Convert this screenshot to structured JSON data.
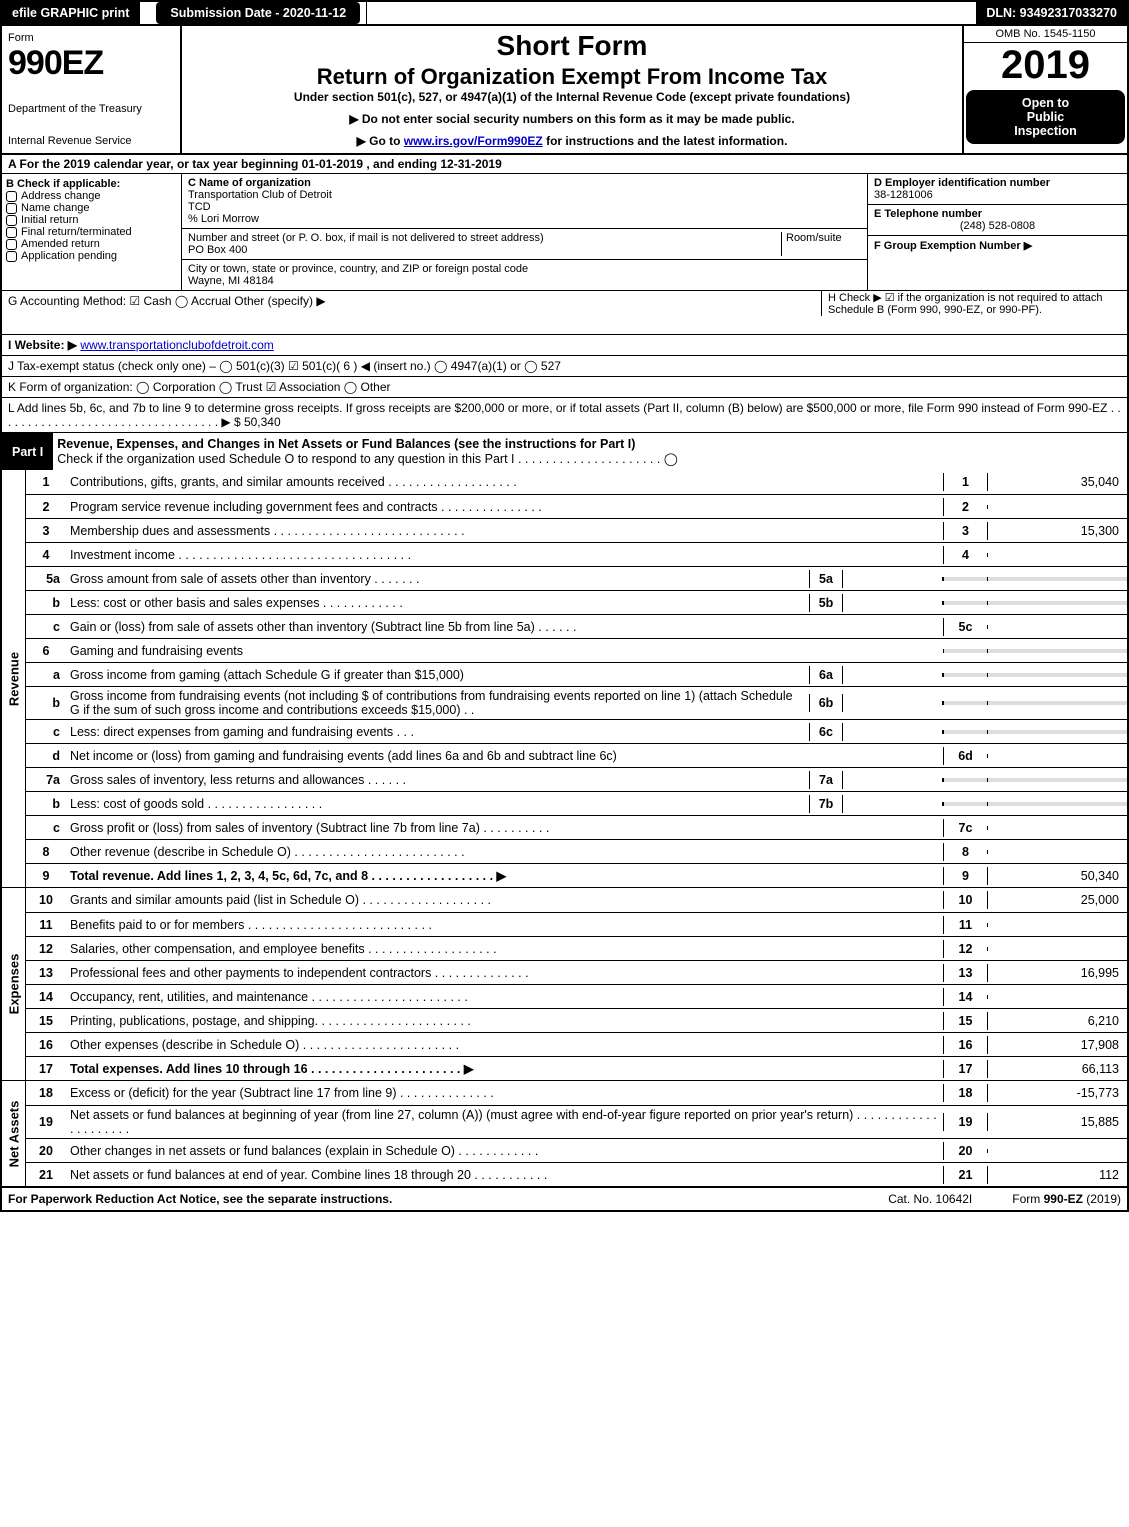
{
  "toprow": {
    "efile": "efile GRAPHIC print",
    "submit": "Submission Date - 2020-11-12",
    "dln": "DLN: 93492317033270"
  },
  "header": {
    "form_label": "Form",
    "form_no": "990EZ",
    "dept1": "Department of the Treasury",
    "dept2": "Internal Revenue Service",
    "short": "Short Form",
    "title": "Return of Organization Exempt From Income Tax",
    "under": "Under section 501(c), 527, or 4947(a)(1) of the Internal Revenue Code (except private foundations)",
    "inst1": "▶ Do not enter social security numbers on this form as it may be made public.",
    "inst2_pre": "▶ Go to ",
    "inst2_link": "www.irs.gov/Form990EZ",
    "inst2_post": " for instructions and the latest information.",
    "omb": "OMB No. 1545-1150",
    "year": "2019",
    "open1": "Open to",
    "open2": "Public",
    "open3": "Inspection"
  },
  "period": "A For the 2019 calendar year, or tax year beginning 01-01-2019 , and ending 12-31-2019",
  "sectionB": {
    "hdr": "B  Check if applicable:",
    "items": [
      "Address change",
      "Name change",
      "Initial return",
      "Final return/terminated",
      "Amended return",
      "Application pending"
    ]
  },
  "entity": {
    "c_label": "C Name of organization",
    "name1": "Transportation Club of Detroit",
    "name2": "TCD",
    "care": "% Lori Morrow",
    "street_label": "Number and street (or P. O. box, if mail is not delivered to street address)",
    "room": "Room/suite",
    "street": "PO Box 400",
    "city_label": "City or town, state or province, country, and ZIP or foreign postal code",
    "city": "Wayne, MI  48184"
  },
  "rightcol": {
    "d_label": "D Employer identification number",
    "ein": "38-1281006",
    "e_label": "E Telephone number",
    "phone": "(248) 528-0808",
    "f_label": "F Group Exemption Number  ▶"
  },
  "g": "G Accounting Method:   ☑ Cash   ◯ Accrual   Other (specify) ▶",
  "h": "H  Check ▶ ☑ if the organization is not required to attach Schedule B (Form 990, 990-EZ, or 990-PF).",
  "i_pre": "I Website: ▶",
  "i_link": "www.transportationclubofdetroit.com",
  "j": "J Tax-exempt status (check only one) – ◯ 501(c)(3)  ☑ 501(c)( 6 ) ◀ (insert no.)  ◯ 4947(a)(1) or  ◯ 527",
  "k": "K Form of organization:   ◯ Corporation   ◯ Trust   ☑ Association   ◯ Other",
  "l": "L Add lines 5b, 6c, and 7b to line 9 to determine gross receipts. If gross receipts are $200,000 or more, or if total assets (Part II, column (B) below) are $500,000 or more, file Form 990 instead of Form 990-EZ  .  .  .  .  .  .  .  .  .  .  .  .  .  .  .  .  .  .  .  .  .  .  .  .  .  .  .  .  .  .  .  .  .  .  ▶ $ 50,340",
  "part1": {
    "label": "Part I",
    "title": "Revenue, Expenses, and Changes in Net Assets or Fund Balances (see the instructions for Part I)",
    "checkline": "Check if the organization used Schedule O to respond to any question in this Part I  .  .  .  .  .  .  .  .  .  .  .  .  .  .  .  .  .  .  .  .  .  ◯"
  },
  "sections": {
    "rev": "Revenue",
    "exp": "Expenses",
    "net": "Net Assets"
  },
  "revenue": [
    {
      "n": "1",
      "d": "Contributions, gifts, grants, and similar amounts received  .  .  .  .  .  .  .  .  .  .  .  .  .  .  .  .  .  .  .",
      "num": "1",
      "amt": "35,040"
    },
    {
      "n": "2",
      "d": "Program service revenue including government fees and contracts  .  .  .  .  .  .  .  .  .  .  .  .  .  .  .",
      "num": "2",
      "amt": ""
    },
    {
      "n": "3",
      "d": "Membership dues and assessments  .  .  .  .  .  .  .  .  .  .  .  .  .  .  .  .  .  .  .  .  .  .  .  .  .  .  .  .",
      "num": "3",
      "amt": "15,300"
    },
    {
      "n": "4",
      "d": "Investment income  .  .  .  .  .  .  .  .  .  .  .  .  .  .  .  .  .  .  .  .  .  .  .  .  .  .  .  .  .  .  .  .  .  .",
      "num": "4",
      "amt": ""
    }
  ],
  "rev_5a": {
    "n": "5a",
    "d": "Gross amount from sale of assets other than inventory  .  .  .  .  .  .  .",
    "ibox": "5a"
  },
  "rev_5b": {
    "n": "b",
    "d": "Less: cost or other basis and sales expenses  .  .  .  .  .  .  .  .  .  .  .  .",
    "ibox": "5b"
  },
  "rev_5c": {
    "n": "c",
    "d": "Gain or (loss) from sale of assets other than inventory (Subtract line 5b from line 5a)  .  .  .  .  .  .",
    "num": "5c"
  },
  "rev_6": {
    "n": "6",
    "d": "Gaming and fundraising events"
  },
  "rev_6a": {
    "n": "a",
    "d": "Gross income from gaming (attach Schedule G if greater than $15,000)",
    "ibox": "6a"
  },
  "rev_6b": {
    "n": "b",
    "d": "Gross income from fundraising events (not including $                 of contributions from fundraising events reported on line 1) (attach Schedule G if the sum of such gross income and contributions exceeds $15,000)    .  .",
    "ibox": "6b"
  },
  "rev_6c": {
    "n": "c",
    "d": "Less: direct expenses from gaming and fundraising events     .  .  .",
    "ibox": "6c"
  },
  "rev_6d": {
    "n": "d",
    "d": "Net income or (loss) from gaming and fundraising events (add lines 6a and 6b and subtract line 6c)",
    "num": "6d"
  },
  "rev_7a": {
    "n": "7a",
    "d": "Gross sales of inventory, less returns and allowances  .  .  .  .  .  .",
    "ibox": "7a"
  },
  "rev_7b": {
    "n": "b",
    "d": "Less: cost of goods sold       .  .  .  .  .  .  .  .  .  .  .  .  .  .  .  .  .",
    "ibox": "7b"
  },
  "rev_7c": {
    "n": "c",
    "d": "Gross profit or (loss) from sales of inventory (Subtract line 7b from line 7a)  .  .  .  .  .  .  .  .  .  .",
    "num": "7c"
  },
  "rev_8": {
    "n": "8",
    "d": "Other revenue (describe in Schedule O)  .  .  .  .  .  .  .  .  .  .  .  .  .  .  .  .  .  .  .  .  .  .  .  .  .",
    "num": "8"
  },
  "rev_9": {
    "n": "9",
    "d": "Total revenue. Add lines 1, 2, 3, 4, 5c, 6d, 7c, and 8   .  .  .  .  .  .  .  .  .  .  .  .  .  .  .  .  .  .  ▶",
    "num": "9",
    "amt": "50,340"
  },
  "expenses": [
    {
      "n": "10",
      "d": "Grants and similar amounts paid (list in Schedule O)  .  .  .  .  .  .  .  .  .  .  .  .  .  .  .  .  .  .  .",
      "num": "10",
      "amt": "25,000"
    },
    {
      "n": "11",
      "d": "Benefits paid to or for members    .  .  .  .  .  .  .  .  .  .  .  .  .  .  .  .  .  .  .  .  .  .  .  .  .  .  .",
      "num": "11",
      "amt": ""
    },
    {
      "n": "12",
      "d": "Salaries, other compensation, and employee benefits  .  .  .  .  .  .  .  .  .  .  .  .  .  .  .  .  .  .  .",
      "num": "12",
      "amt": ""
    },
    {
      "n": "13",
      "d": "Professional fees and other payments to independent contractors  .  .  .  .  .  .  .  .  .  .  .  .  .  .",
      "num": "13",
      "amt": "16,995"
    },
    {
      "n": "14",
      "d": "Occupancy, rent, utilities, and maintenance  .  .  .  .  .  .  .  .  .  .  .  .  .  .  .  .  .  .  .  .  .  .  .",
      "num": "14",
      "amt": ""
    },
    {
      "n": "15",
      "d": "Printing, publications, postage, and shipping.  .  .  .  .  .  .  .  .  .  .  .  .  .  .  .  .  .  .  .  .  .  .",
      "num": "15",
      "amt": "6,210"
    },
    {
      "n": "16",
      "d": "Other expenses (describe in Schedule O)    .  .  .  .  .  .  .  .  .  .  .  .  .  .  .  .  .  .  .  .  .  .  .",
      "num": "16",
      "amt": "17,908"
    },
    {
      "n": "17",
      "d": "Total expenses. Add lines 10 through 16    .  .  .  .  .  .  .  .  .  .  .  .  .  .  .  .  .  .  .  .  .  . ▶",
      "num": "17",
      "amt": "66,113"
    }
  ],
  "netassets": [
    {
      "n": "18",
      "d": "Excess or (deficit) for the year (Subtract line 17 from line 9)      .  .  .  .  .  .  .  .  .  .  .  .  .  .",
      "num": "18",
      "amt": "-15,773"
    },
    {
      "n": "19",
      "d": "Net assets or fund balances at beginning of year (from line 27, column (A)) (must agree with end-of-year figure reported on prior year's return)  .  .  .  .  .  .  .  .  .  .  .  .  .  .  .  .  .  .  .  .  .",
      "num": "19",
      "amt": "15,885"
    },
    {
      "n": "20",
      "d": "Other changes in net assets or fund balances (explain in Schedule O)  .  .  .  .  .  .  .  .  .  .  .  .",
      "num": "20",
      "amt": ""
    },
    {
      "n": "21",
      "d": "Net assets or fund balances at end of year. Combine lines 18 through 20  .  .  .  .  .  .  .  .  .  .  .",
      "num": "21",
      "amt": "112"
    }
  ],
  "footer": {
    "left": "For Paperwork Reduction Act Notice, see the separate instructions.",
    "center": "Cat. No. 10642I",
    "right": "Form 990-EZ (2019)"
  }
}
